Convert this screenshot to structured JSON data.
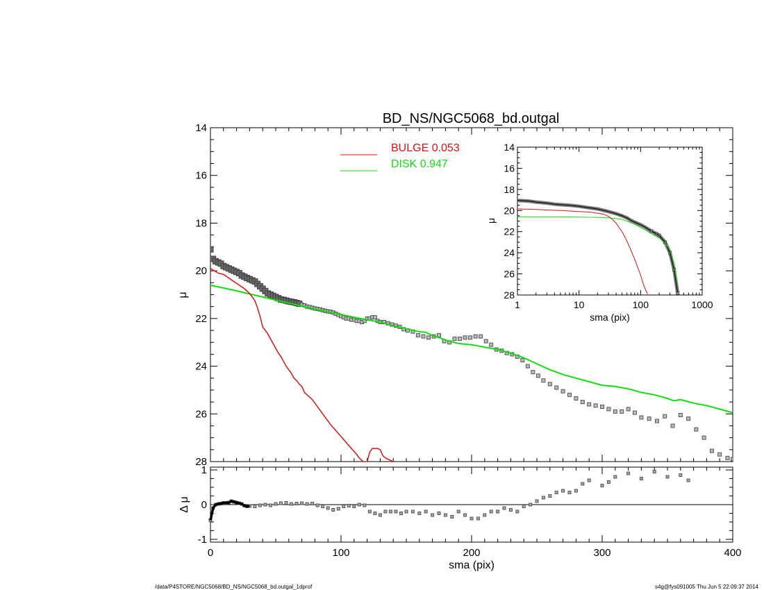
{
  "title": "BD_NS/NGC5068_bd.outgal",
  "footer_left": "/data/P4STORE/NGC5068/BD_NS/NGC5068_bd.outgal_1dprof",
  "footer_right": "s4g@fys091005  Thu Jun  5 22:09:37 2014",
  "colors": {
    "data": "#555555",
    "bulge": "#dd1111",
    "disk": "#11dd11",
    "axes": "#000000"
  },
  "chart_data": [
    {
      "type": "scatter",
      "xlabel": "sma (pix)",
      "ylabel": "μ",
      "xlim": [
        0,
        400
      ],
      "ylim": [
        28,
        14
      ],
      "yticks": [
        14,
        16,
        18,
        20,
        22,
        24,
        26,
        28
      ],
      "legend": [
        {
          "name": "BULGE",
          "value": "0.053",
          "label": "BULGE  0.053",
          "color": "#dd1111"
        },
        {
          "name": "DISK",
          "value": "0.947",
          "label": "DISK  0.947",
          "color": "#11dd11"
        }
      ],
      "series": [
        {
          "name": "data",
          "x": [
            0,
            2,
            4,
            6,
            8,
            10,
            12,
            14,
            16,
            18,
            20,
            22,
            24,
            26,
            28,
            30,
            32,
            34,
            36,
            38,
            40,
            42,
            44,
            46,
            48,
            50,
            52,
            54,
            56,
            58,
            60,
            62,
            64,
            66,
            68,
            70,
            72,
            74,
            76,
            78,
            80,
            82,
            84,
            86,
            88,
            90,
            92,
            94,
            96,
            98,
            100,
            102,
            104,
            106,
            108,
            110,
            112,
            114,
            116,
            118,
            120,
            122,
            124,
            126,
            128,
            130,
            133,
            136,
            139,
            142,
            145,
            148,
            151,
            155,
            159,
            163,
            167,
            171,
            175,
            179,
            183,
            187,
            191,
            195,
            199,
            203,
            207,
            211,
            215,
            219,
            223,
            227,
            231,
            235,
            239,
            243,
            247,
            251,
            255,
            260,
            265,
            270,
            275,
            280,
            285,
            290,
            295,
            300,
            305,
            310,
            315,
            320,
            325,
            330,
            336,
            342,
            348,
            354,
            360,
            366,
            372,
            378,
            384,
            390,
            396,
            400
          ],
          "values": [
            19.1,
            19.5,
            19.6,
            19.65,
            19.7,
            19.8,
            19.85,
            19.9,
            19.95,
            20.0,
            20.05,
            20.1,
            20.2,
            20.25,
            20.3,
            20.35,
            20.4,
            20.45,
            20.55,
            20.65,
            20.75,
            20.85,
            20.95,
            21.0,
            21.05,
            21.1,
            21.15,
            21.2,
            21.22,
            21.25,
            21.28,
            21.3,
            21.32,
            21.35,
            21.38,
            21.42,
            21.45,
            21.5,
            21.52,
            21.55,
            21.58,
            21.6,
            21.62,
            21.65,
            21.68,
            21.7,
            21.72,
            21.75,
            21.8,
            21.85,
            21.9,
            21.95,
            22.0,
            22.0,
            22.05,
            22.05,
            22.1,
            22.1,
            22.15,
            22.1,
            22.0,
            22.0,
            21.95,
            21.95,
            22.1,
            22.15,
            22.15,
            22.2,
            22.25,
            22.3,
            22.35,
            22.45,
            22.5,
            22.55,
            22.7,
            22.75,
            22.8,
            22.75,
            22.7,
            22.95,
            23.0,
            22.85,
            22.85,
            22.8,
            22.8,
            22.75,
            22.75,
            22.95,
            23.1,
            23.3,
            23.35,
            23.45,
            23.5,
            23.6,
            23.75,
            24.0,
            24.25,
            24.4,
            24.6,
            24.75,
            24.9,
            25.05,
            25.2,
            25.35,
            25.5,
            25.6,
            25.65,
            25.7,
            25.8,
            25.9,
            25.9,
            25.8,
            25.95,
            26.15,
            26.2,
            26.3,
            26.1,
            26.5,
            26.05,
            26.2,
            26.65,
            27.0,
            27.55,
            27.7,
            27.85,
            27.9
          ]
        },
        {
          "name": "bulge",
          "x": [
            0,
            3,
            6,
            10,
            14,
            18,
            22,
            26,
            28,
            30,
            32,
            34,
            36,
            38,
            40,
            42,
            44,
            46,
            48,
            50,
            52,
            54,
            56,
            58,
            60,
            62,
            64,
            66,
            68,
            70,
            72,
            74,
            76,
            78,
            80,
            84,
            88,
            92,
            96,
            100,
            104,
            108,
            112,
            114,
            116,
            118,
            120,
            122,
            124,
            126,
            128,
            130,
            132,
            134,
            136,
            138,
            140
          ],
          "values": [
            19.9,
            20.0,
            20.1,
            20.15,
            20.3,
            20.45,
            20.6,
            20.75,
            20.85,
            20.95,
            21.1,
            21.25,
            21.55,
            21.9,
            22.35,
            22.5,
            22.65,
            22.85,
            23.05,
            23.25,
            23.45,
            23.6,
            23.8,
            24.0,
            24.15,
            24.3,
            24.5,
            24.6,
            24.75,
            24.85,
            25.1,
            25.2,
            25.3,
            25.4,
            25.55,
            25.85,
            26.15,
            26.45,
            26.7,
            26.95,
            27.2,
            27.45,
            27.7,
            27.85,
            27.95,
            28.05,
            28.0,
            27.6,
            27.45,
            27.45,
            27.45,
            27.5,
            27.75,
            27.85,
            27.9,
            27.95,
            28.0
          ]
        },
        {
          "name": "disk",
          "x": [
            0,
            10,
            20,
            30,
            40,
            50,
            60,
            70,
            80,
            90,
            100,
            110,
            120,
            130,
            140,
            150,
            155,
            160,
            165,
            170,
            175,
            180,
            190,
            200,
            210,
            220,
            230,
            240,
            250,
            260,
            270,
            280,
            290,
            300,
            310,
            320,
            330,
            340,
            350,
            355,
            360,
            370,
            380,
            390,
            400
          ],
          "values": [
            20.6,
            20.72,
            20.84,
            20.97,
            21.1,
            21.23,
            21.35,
            21.48,
            21.6,
            21.72,
            21.83,
            21.95,
            22.05,
            22.15,
            22.3,
            22.42,
            22.5,
            22.55,
            22.58,
            22.72,
            22.8,
            22.9,
            23.05,
            23.1,
            23.2,
            23.3,
            23.45,
            23.65,
            23.9,
            24.15,
            24.35,
            24.5,
            24.65,
            24.8,
            24.85,
            24.95,
            25.1,
            25.2,
            25.35,
            25.45,
            25.4,
            25.55,
            25.65,
            25.8,
            25.95
          ]
        }
      ]
    },
    {
      "type": "scatter",
      "xlabel": "sma (pix)",
      "ylabel": "Δ μ",
      "xlim": [
        0,
        400
      ],
      "ylim": [
        -1,
        1
      ],
      "xticks": [
        0,
        100,
        200,
        300,
        400
      ],
      "yticks": [
        -1,
        0,
        1
      ],
      "series": [
        {
          "name": "residual",
          "x": [
            0,
            2,
            4,
            6,
            8,
            10,
            12,
            14,
            16,
            18,
            20,
            22,
            24,
            26,
            28,
            30,
            34,
            38,
            42,
            46,
            50,
            54,
            58,
            62,
            66,
            70,
            74,
            78,
            82,
            86,
            90,
            94,
            98,
            102,
            106,
            110,
            114,
            118,
            122,
            126,
            130,
            134,
            138,
            142,
            146,
            150,
            155,
            160,
            165,
            170,
            175,
            180,
            185,
            190,
            195,
            200,
            205,
            210,
            215,
            220,
            225,
            230,
            235,
            240,
            245,
            250,
            255,
            260,
            265,
            270,
            275,
            280,
            285,
            290,
            300,
            305,
            310,
            320,
            330,
            340,
            350,
            360,
            366
          ],
          "values": [
            -0.45,
            -0.1,
            0.0,
            0.02,
            0.03,
            0.05,
            0.05,
            0.06,
            0.1,
            0.08,
            0.06,
            0.04,
            0.02,
            -0.03,
            -0.05,
            -0.04,
            -0.05,
            -0.02,
            0.0,
            -0.02,
            0.02,
            0.04,
            0.05,
            0.02,
            0.03,
            0.04,
            0.02,
            0.03,
            -0.02,
            -0.05,
            -0.1,
            -0.15,
            -0.12,
            -0.05,
            -0.03,
            -0.05,
            0.0,
            -0.02,
            -0.2,
            -0.25,
            -0.3,
            -0.2,
            -0.2,
            -0.2,
            -0.25,
            -0.2,
            -0.2,
            -0.25,
            -0.2,
            -0.3,
            -0.25,
            -0.3,
            -0.35,
            -0.2,
            -0.3,
            -0.4,
            -0.4,
            -0.3,
            -0.2,
            -0.2,
            -0.1,
            -0.15,
            -0.2,
            -0.05,
            0.0,
            0.1,
            0.2,
            0.25,
            0.35,
            0.4,
            0.35,
            0.4,
            0.6,
            0.7,
            0.55,
            0.65,
            0.8,
            0.9,
            0.75,
            0.95,
            0.8,
            0.85,
            0.7
          ]
        }
      ]
    },
    {
      "type": "scatter",
      "xlabel": "sma (pix)",
      "ylabel": "μ",
      "xscale": "log",
      "xlim": [
        1,
        1000
      ],
      "ylim": [
        28,
        14
      ],
      "xticks": [
        1,
        10,
        100,
        1000
      ],
      "yticks": [
        14,
        16,
        18,
        20,
        22,
        24,
        26,
        28
      ],
      "series": [
        {
          "name": "data",
          "x": [
            1,
            1.5,
            2,
            3,
            4,
            5,
            7,
            10,
            15,
            20,
            30,
            40,
            50,
            60,
            70,
            80,
            100,
            120,
            150,
            180,
            200,
            250,
            300,
            350,
            400
          ],
          "values": [
            19.05,
            19.1,
            19.2,
            19.3,
            19.4,
            19.45,
            19.5,
            19.6,
            19.75,
            19.85,
            20.1,
            20.3,
            20.5,
            20.7,
            20.95,
            21.1,
            21.35,
            21.6,
            21.95,
            22.2,
            22.35,
            23.0,
            24.0,
            25.6,
            27.8
          ]
        },
        {
          "name": "bulge",
          "x": [
            1,
            2,
            3,
            5,
            7,
            10,
            15,
            20,
            25,
            30,
            35,
            40,
            50,
            60,
            70,
            80,
            90,
            100,
            110,
            120,
            130
          ],
          "values": [
            19.85,
            19.9,
            19.95,
            20.0,
            20.05,
            20.1,
            20.15,
            20.25,
            20.35,
            20.55,
            20.85,
            21.2,
            22.0,
            22.9,
            23.8,
            24.6,
            25.4,
            26.1,
            26.9,
            27.5,
            27.9
          ]
        },
        {
          "name": "disk",
          "x": [
            1,
            5,
            10,
            20,
            30,
            40,
            50,
            60,
            80,
            100,
            120,
            150,
            200,
            250,
            300,
            350,
            400
          ],
          "values": [
            20.6,
            20.6,
            20.62,
            20.65,
            20.7,
            20.75,
            20.85,
            21.0,
            21.3,
            21.6,
            21.85,
            22.2,
            22.6,
            23.1,
            23.7,
            25.0,
            27.0
          ]
        }
      ]
    }
  ]
}
